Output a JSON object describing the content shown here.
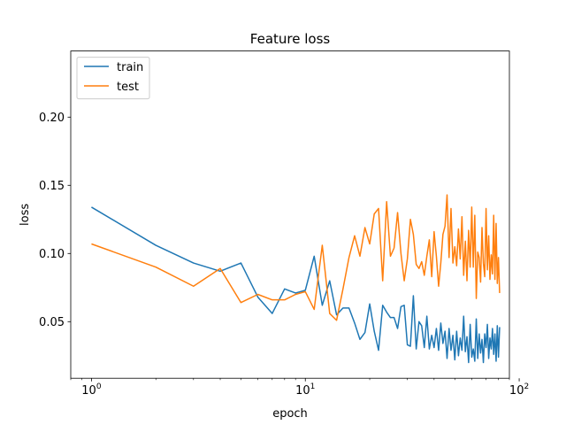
{
  "chart_data": {
    "type": "line",
    "title": "Feature loss",
    "xlabel": "epoch",
    "ylabel": "loss",
    "xscale": "log",
    "xlim": [
      0.8,
      90
    ],
    "ylim": [
      0.0085,
      0.2485
    ],
    "xticks": [
      {
        "value": 1,
        "base": "10",
        "exp": "0"
      },
      {
        "value": 10,
        "base": "10",
        "exp": "1"
      },
      {
        "value": 100,
        "base": "10",
        "exp": "2"
      }
    ],
    "yticks": [
      0.05,
      0.1,
      0.15,
      0.2
    ],
    "ytick_labels": [
      "0.05",
      "0.10",
      "0.15",
      "0.20"
    ],
    "grid": false,
    "legend_position": "upper-left",
    "series": [
      {
        "name": "train",
        "color": "#1f77b4",
        "x": [
          0,
          1,
          2,
          3,
          4,
          5,
          6,
          7,
          8,
          9,
          10,
          11,
          12,
          13,
          14,
          15,
          16,
          17,
          18,
          19,
          20,
          21,
          22,
          23,
          24,
          25,
          26,
          27,
          28,
          29,
          30,
          31,
          32,
          33,
          34,
          35,
          36,
          37,
          38,
          39,
          40,
          41,
          42,
          43,
          44,
          45,
          46,
          47,
          48,
          49,
          50,
          51,
          52,
          53,
          54,
          55,
          56,
          57,
          58,
          59,
          60,
          61,
          62,
          63,
          64,
          65,
          66,
          67,
          68,
          69,
          70,
          71,
          72,
          73,
          74,
          75,
          76,
          77,
          78,
          79,
          80,
          81
        ],
        "y": [
          0.134,
          0.134,
          0.106,
          0.093,
          0.087,
          0.093,
          0.068,
          0.056,
          0.074,
          0.071,
          0.073,
          0.098,
          0.062,
          0.08,
          0.055,
          0.06,
          0.06,
          0.049,
          0.037,
          0.042,
          0.063,
          0.043,
          0.029,
          0.062,
          0.057,
          0.053,
          0.053,
          0.045,
          0.061,
          0.062,
          0.033,
          0.032,
          0.069,
          0.03,
          0.05,
          0.047,
          0.031,
          0.054,
          0.03,
          0.04,
          0.031,
          0.045,
          0.029,
          0.049,
          0.034,
          0.043,
          0.023,
          0.045,
          0.029,
          0.04,
          0.022,
          0.043,
          0.025,
          0.038,
          0.029,
          0.054,
          0.028,
          0.039,
          0.02,
          0.048,
          0.024,
          0.03,
          0.021,
          0.052,
          0.023,
          0.041,
          0.027,
          0.037,
          0.02,
          0.041,
          0.031,
          0.048,
          0.023,
          0.038,
          0.03,
          0.045,
          0.026,
          0.041,
          0.021,
          0.047,
          0.024,
          0.046
        ]
      },
      {
        "name": "test",
        "color": "#ff7f0e",
        "x": [
          0,
          1,
          2,
          3,
          4,
          5,
          6,
          7,
          8,
          9,
          10,
          11,
          12,
          13,
          14,
          15,
          16,
          17,
          18,
          19,
          20,
          21,
          22,
          23,
          24,
          25,
          26,
          27,
          28,
          29,
          30,
          31,
          32,
          33,
          34,
          35,
          36,
          37,
          38,
          39,
          40,
          41,
          42,
          43,
          44,
          45,
          46,
          47,
          48,
          49,
          50,
          51,
          52,
          53,
          54,
          55,
          56,
          57,
          58,
          59,
          60,
          61,
          62,
          63,
          64,
          65,
          66,
          67,
          68,
          69,
          70,
          71,
          72,
          73,
          74,
          75,
          76,
          77,
          78,
          79,
          80,
          81
        ],
        "y": [
          0.107,
          0.107,
          0.09,
          0.076,
          0.089,
          0.064,
          0.07,
          0.066,
          0.066,
          0.07,
          0.072,
          0.059,
          0.106,
          0.056,
          0.051,
          0.074,
          0.097,
          0.113,
          0.098,
          0.119,
          0.107,
          0.129,
          0.133,
          0.08,
          0.138,
          0.098,
          0.104,
          0.13,
          0.1,
          0.08,
          0.096,
          0.125,
          0.114,
          0.092,
          0.089,
          0.094,
          0.084,
          0.098,
          0.11,
          0.083,
          0.116,
          0.098,
          0.076,
          0.093,
          0.114,
          0.12,
          0.143,
          0.097,
          0.133,
          0.093,
          0.105,
          0.091,
          0.118,
          0.096,
          0.127,
          0.084,
          0.109,
          0.08,
          0.117,
          0.09,
          0.134,
          0.09,
          0.128,
          0.067,
          0.101,
          0.097,
          0.079,
          0.119,
          0.093,
          0.083,
          0.133,
          0.088,
          0.113,
          0.081,
          0.099,
          0.085,
          0.128,
          0.081,
          0.122,
          0.078,
          0.097,
          0.071
        ]
      }
    ]
  }
}
